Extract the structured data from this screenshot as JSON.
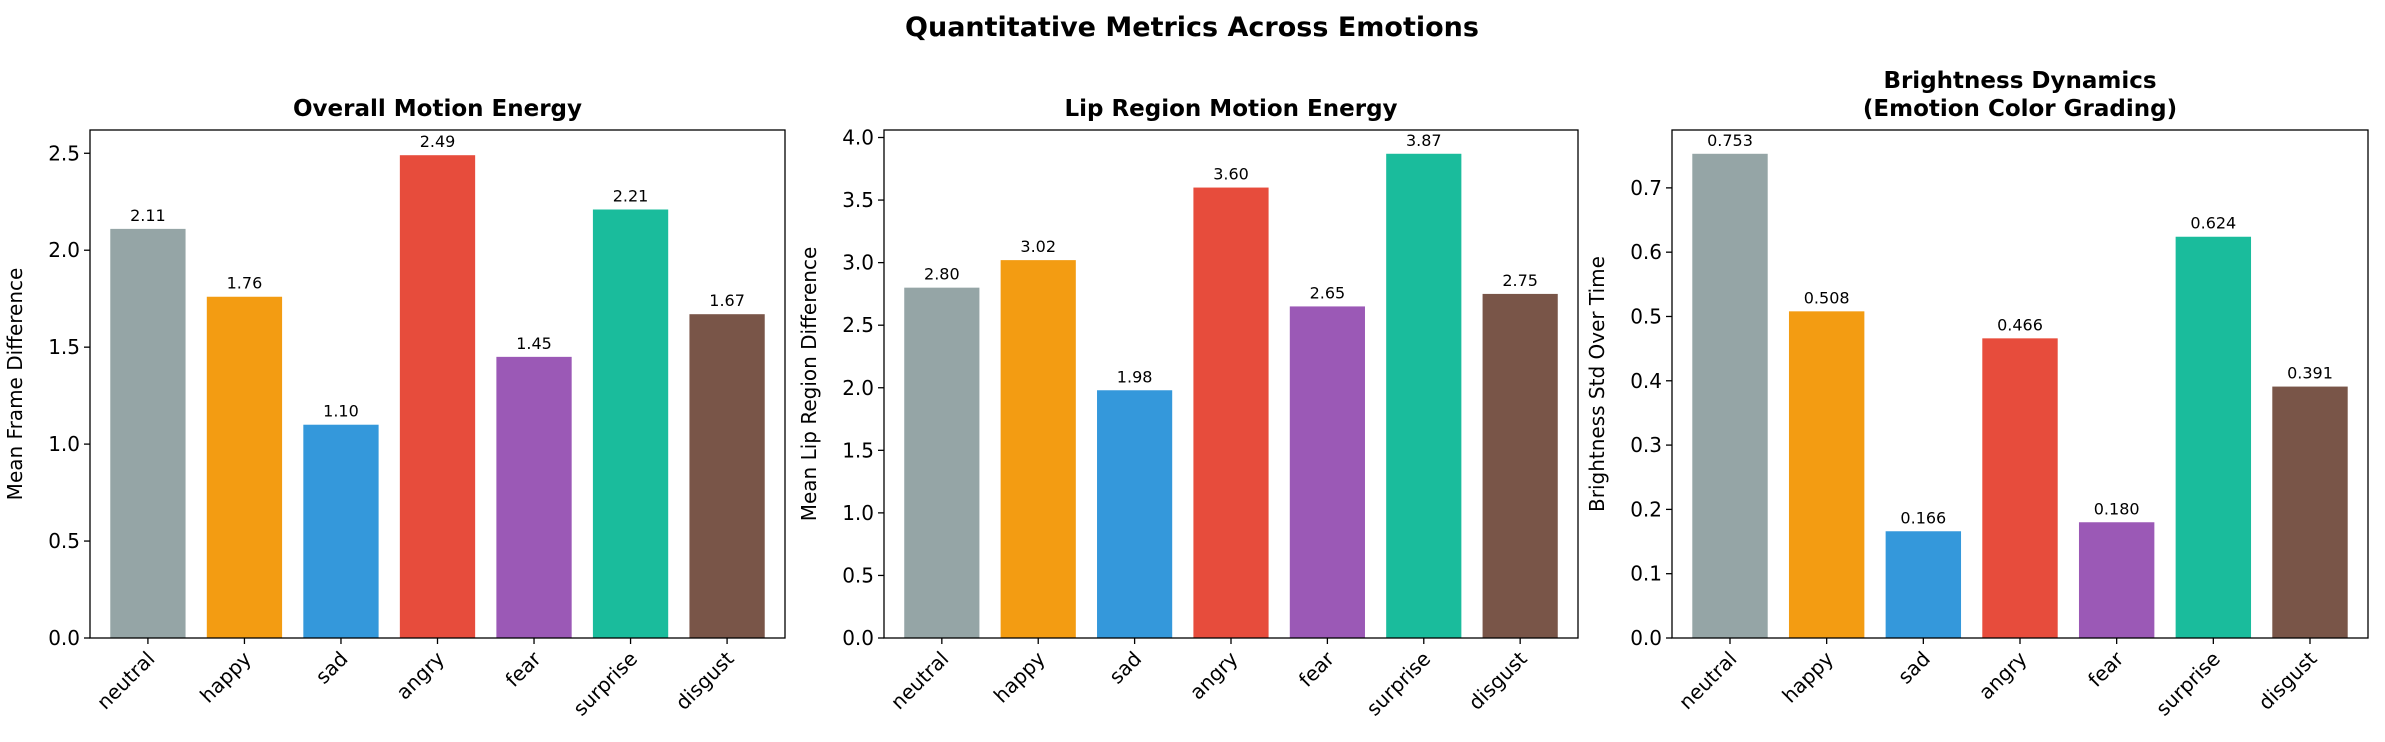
{
  "suptitle": "Quantitative Metrics Across Emotions",
  "chart_data": [
    {
      "type": "bar",
      "title": [
        "Overall Motion Energy"
      ],
      "xlabel": "",
      "ylabel": "Mean Frame Difference",
      "categories": [
        "neutral",
        "happy",
        "sad",
        "angry",
        "fear",
        "surprise",
        "disgust"
      ],
      "values": [
        2.11,
        1.76,
        1.1,
        2.49,
        1.45,
        2.21,
        1.67
      ],
      "value_labels": [
        "2.11",
        "1.76",
        "1.10",
        "2.49",
        "1.45",
        "2.21",
        "1.67"
      ],
      "ylim": [
        0,
        2.62
      ],
      "yticks": [
        0.0,
        0.5,
        1.0,
        1.5,
        2.0,
        2.5
      ],
      "ytick_labels": [
        "0.0",
        "0.5",
        "1.0",
        "1.5",
        "2.0",
        "2.5"
      ],
      "colors": [
        "#95a5a6",
        "#f39c12",
        "#3498db",
        "#e74c3c",
        "#9b59b6",
        "#1abc9c",
        "#795548"
      ],
      "grid": false,
      "legend": "none"
    },
    {
      "type": "bar",
      "title": [
        "Lip Region Motion Energy"
      ],
      "xlabel": "",
      "ylabel": "Mean Lip Region Difference",
      "categories": [
        "neutral",
        "happy",
        "sad",
        "angry",
        "fear",
        "surprise",
        "disgust"
      ],
      "values": [
        2.8,
        3.02,
        1.98,
        3.6,
        2.65,
        3.87,
        2.75
      ],
      "value_labels": [
        "2.80",
        "3.02",
        "1.98",
        "3.60",
        "2.65",
        "3.87",
        "2.75"
      ],
      "ylim": [
        0,
        4.06
      ],
      "yticks": [
        0.0,
        0.5,
        1.0,
        1.5,
        2.0,
        2.5,
        3.0,
        3.5,
        4.0
      ],
      "ytick_labels": [
        "0.0",
        "0.5",
        "1.0",
        "1.5",
        "2.0",
        "2.5",
        "3.0",
        "3.5",
        "4.0"
      ],
      "colors": [
        "#95a5a6",
        "#f39c12",
        "#3498db",
        "#e74c3c",
        "#9b59b6",
        "#1abc9c",
        "#795548"
      ],
      "grid": false,
      "legend": "none"
    },
    {
      "type": "bar",
      "title": [
        "Brightness Dynamics",
        "(Emotion Color Grading)"
      ],
      "xlabel": "",
      "ylabel": "Brightness Std Over Time",
      "categories": [
        "neutral",
        "happy",
        "sad",
        "angry",
        "fear",
        "surprise",
        "disgust"
      ],
      "values": [
        0.753,
        0.508,
        0.166,
        0.466,
        0.18,
        0.624,
        0.391
      ],
      "value_labels": [
        "0.753",
        "0.508",
        "0.166",
        "0.466",
        "0.180",
        "0.624",
        "0.391"
      ],
      "ylim": [
        0,
        0.79
      ],
      "yticks": [
        0.0,
        0.1,
        0.2,
        0.3,
        0.4,
        0.5,
        0.6,
        0.7
      ],
      "ytick_labels": [
        "0.0",
        "0.1",
        "0.2",
        "0.3",
        "0.4",
        "0.5",
        "0.6",
        "0.7"
      ],
      "colors": [
        "#95a5a6",
        "#f39c12",
        "#3498db",
        "#e74c3c",
        "#9b59b6",
        "#1abc9c",
        "#795548"
      ],
      "grid": false,
      "legend": "none"
    }
  ]
}
